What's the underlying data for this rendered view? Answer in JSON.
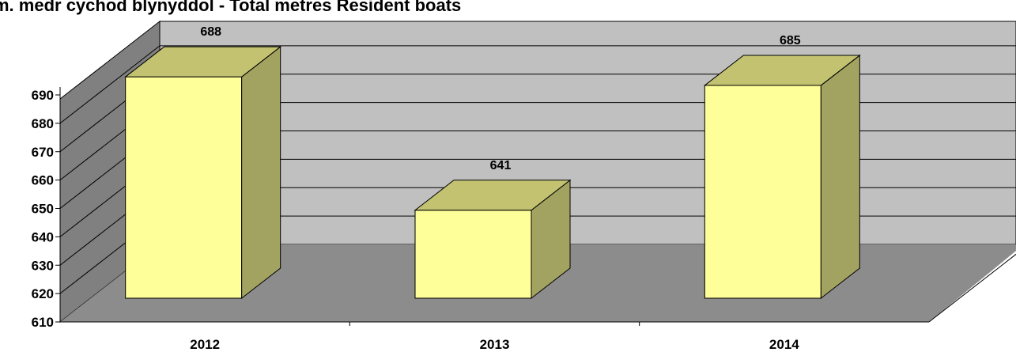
{
  "chart_data": {
    "type": "bar",
    "title": "m. medr cychod blynyddol - Total metres Resident boats",
    "categories": [
      "2012",
      "2013",
      "2014"
    ],
    "values": [
      688,
      641,
      685
    ],
    "yticks": [
      610,
      620,
      630,
      640,
      650,
      660,
      670,
      680,
      690
    ],
    "ylim": [
      610,
      690
    ],
    "grid": true,
    "legend": "none",
    "colors": {
      "bar_front": "#ffff99",
      "bar_top": "#c2c271",
      "bar_side": "#a3a361",
      "back_wall": "#c0c0c0",
      "side_wall": "#808080",
      "floor": "#8c8c8c"
    }
  }
}
